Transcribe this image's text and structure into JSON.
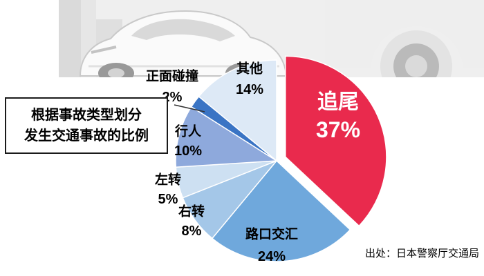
{
  "title_box": {
    "line1": "根据事故类型划分",
    "line2": "发生交通事故的比例"
  },
  "source": "出处：日本警察厅交通局",
  "chart_data": {
    "type": "pie",
    "title": "根据事故类型划分发生交通事故的比例",
    "categories": [
      "追尾",
      "路口交汇",
      "右转",
      "左转",
      "行人",
      "正面碰撞",
      "其他"
    ],
    "values": [
      37,
      24,
      8,
      5,
      10,
      2,
      14
    ],
    "labels": [
      "37%",
      "24%",
      "8%",
      "5%",
      "10%",
      "2%",
      "14%"
    ],
    "colors": [
      "#e92a4d",
      "#6fa8dc",
      "#a4c7e8",
      "#cde0f2",
      "#8ea9dc",
      "#3a74c4",
      "#dde9f6"
    ],
    "start_angle_deg": 0,
    "clockwise": true,
    "exploded_slice": "追尾",
    "legend": "none",
    "source": "出处：日本警察厅交通局"
  }
}
